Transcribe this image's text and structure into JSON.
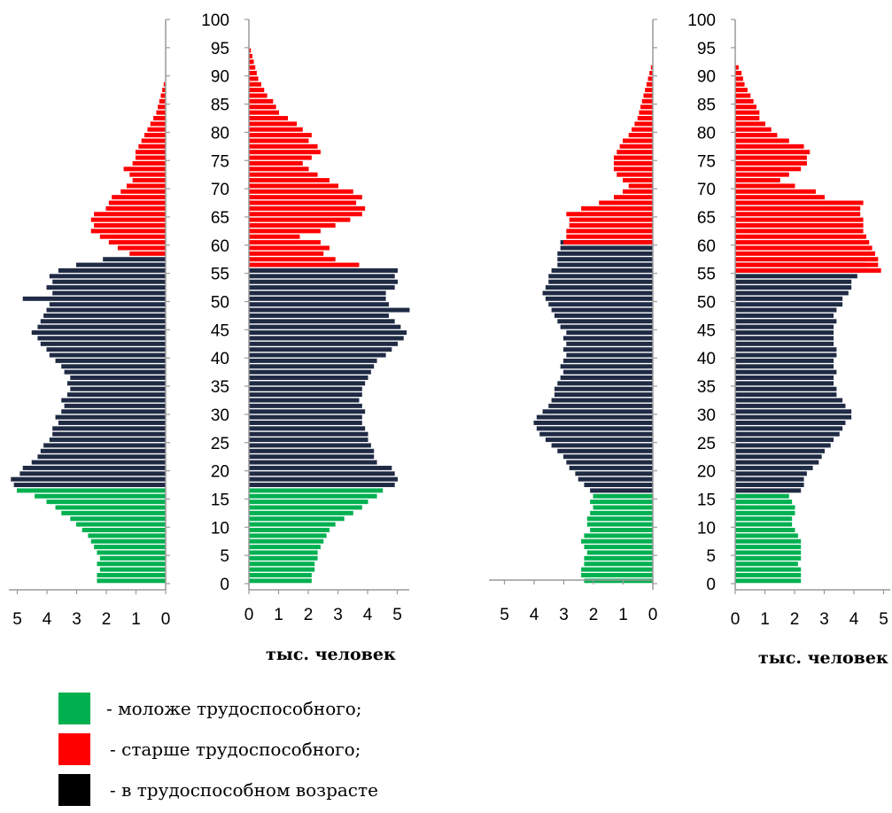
{
  "chart_data": [
    {
      "type": "bar",
      "orientation": "horizontal",
      "direction": "left",
      "panel": "pyramid-1-left",
      "ylim": [
        0,
        100
      ],
      "yticks": [
        "0",
        "5",
        "10",
        "15",
        "20",
        "25",
        "30",
        "35",
        "40",
        "45",
        "50",
        "55",
        "60",
        "65",
        "70",
        "75",
        "80",
        "85",
        "90",
        "95",
        "100"
      ],
      "xlim": [
        5.5,
        0
      ],
      "xticks": [
        "5",
        "4",
        "3",
        "2",
        "1",
        "0"
      ],
      "xlabel": "",
      "age_groups": [
        {
          "group": "younger",
          "from_age": 0,
          "values": [
            2.3,
            2.3,
            2.2,
            2.3,
            2.2,
            2.3,
            2.4,
            2.5,
            2.6,
            2.8,
            3.0,
            3.2,
            3.5,
            3.7,
            4.0,
            4.4,
            5.0
          ]
        },
        {
          "group": "working",
          "from_age": 17,
          "values": [
            5.1,
            5.2,
            4.9,
            4.8,
            4.5,
            4.3,
            4.2,
            4.1,
            3.9,
            3.8,
            3.8,
            3.6,
            3.7,
            3.5,
            3.4,
            3.5,
            3.3,
            3.2,
            3.3,
            3.2,
            3.4,
            3.5,
            3.7,
            3.9,
            4.0,
            4.2,
            4.3,
            4.5,
            4.3,
            4.2,
            4.1,
            4.0,
            3.9,
            4.8,
            3.8,
            4.0,
            3.8,
            3.9,
            3.6,
            3.0,
            2.1
          ]
        },
        {
          "group": "older",
          "from_age": 58,
          "values": [
            1.2,
            1.6,
            1.9,
            2.2,
            2.5,
            2.4,
            2.5,
            2.4,
            2.0,
            1.9,
            1.8,
            1.5,
            1.3,
            1.1,
            1.2,
            1.4,
            1.1,
            1.0,
            1.0,
            0.9,
            0.8,
            0.7,
            0.6,
            0.5,
            0.4,
            0.3,
            0.25,
            0.2,
            0.15,
            0.1,
            0.05
          ]
        }
      ]
    },
    {
      "type": "bar",
      "orientation": "horizontal",
      "direction": "right",
      "panel": "pyramid-1-right",
      "ylim": [
        0,
        100
      ],
      "yticks": [
        "0",
        "5",
        "10",
        "15",
        "20",
        "25",
        "30",
        "35",
        "40",
        "45",
        "50",
        "55",
        "60",
        "65",
        "70",
        "75",
        "80",
        "85",
        "90",
        "95",
        "100"
      ],
      "xlim": [
        0,
        5.5
      ],
      "xticks": [
        "0",
        "1",
        "2",
        "3",
        "4",
        "5"
      ],
      "xlabel": "тыс. человек",
      "age_groups": [
        {
          "group": "younger",
          "from_age": 0,
          "values": [
            2.1,
            2.1,
            2.2,
            2.2,
            2.3,
            2.3,
            2.4,
            2.5,
            2.6,
            2.7,
            2.9,
            3.2,
            3.5,
            3.8,
            4.0,
            4.3,
            4.5
          ]
        },
        {
          "group": "working",
          "from_age": 17,
          "values": [
            4.9,
            5.0,
            4.9,
            4.8,
            4.3,
            4.2,
            4.2,
            4.1,
            4.0,
            4.0,
            3.9,
            3.8,
            3.8,
            3.9,
            3.8,
            3.7,
            3.8,
            3.8,
            3.9,
            4.0,
            4.1,
            4.2,
            4.3,
            4.6,
            4.8,
            5.0,
            5.2,
            5.3,
            5.1,
            4.9,
            4.7,
            5.4,
            4.7,
            4.6,
            4.6,
            4.9,
            5.0,
            4.9,
            5.0
          ]
        },
        {
          "group": "older",
          "from_age": 56,
          "values": [
            3.7,
            2.9,
            2.5,
            2.7,
            2.4,
            1.7,
            2.4,
            2.9,
            3.4,
            3.8,
            3.9,
            3.6,
            3.8,
            3.5,
            3.0,
            2.7,
            2.3,
            2.0,
            1.8,
            2.1,
            2.4,
            2.3,
            2.0,
            2.1,
            1.8,
            1.6,
            1.3,
            1.0,
            0.9,
            0.8,
            0.6,
            0.5,
            0.4,
            0.3,
            0.25,
            0.2,
            0.15,
            0.1,
            0.05
          ]
        }
      ]
    },
    {
      "type": "bar",
      "orientation": "horizontal",
      "direction": "left",
      "panel": "pyramid-2-left",
      "ylim": [
        0,
        100
      ],
      "yticks": [
        "0",
        "5",
        "10",
        "15",
        "20",
        "25",
        "30",
        "35",
        "40",
        "45",
        "50",
        "55",
        "60",
        "65",
        "70",
        "75",
        "80",
        "85",
        "90",
        "95",
        "100"
      ],
      "xlim": [
        5.5,
        0
      ],
      "xticks": [
        "5",
        "4",
        "3",
        "2",
        "1",
        "0"
      ],
      "xlabel": "",
      "age_groups": [
        {
          "group": "younger",
          "from_age": 0,
          "values": [
            2.3,
            2.4,
            2.4,
            2.3,
            2.3,
            2.2,
            2.3,
            2.4,
            2.3,
            2.1,
            2.2,
            2.2,
            2.1,
            2.0,
            2.1,
            2.0
          ]
        },
        {
          "group": "working",
          "from_age": 16,
          "values": [
            2.1,
            2.3,
            2.5,
            2.6,
            2.8,
            2.9,
            3.0,
            3.2,
            3.4,
            3.6,
            3.8,
            3.9,
            4.0,
            3.9,
            3.7,
            3.5,
            3.4,
            3.3,
            3.3,
            3.2,
            3.1,
            3.0,
            3.1,
            3.0,
            2.9,
            3.0,
            2.9,
            3.0,
            2.9,
            3.1,
            3.2,
            3.3,
            3.4,
            3.5,
            3.6,
            3.7,
            3.6,
            3.5,
            3.5,
            3.4,
            3.2,
            3.2,
            3.2,
            3.1,
            3.1
          ]
        },
        {
          "group": "older",
          "from_age": 60,
          "values": [
            3.0,
            2.9,
            2.9,
            2.8,
            2.8,
            2.9,
            2.4,
            1.8,
            1.3,
            1.0,
            0.8,
            1.0,
            1.2,
            1.3,
            1.3,
            1.3,
            1.2,
            1.1,
            1.0,
            0.8,
            0.7,
            0.6,
            0.5,
            0.45,
            0.4,
            0.35,
            0.3,
            0.25,
            0.2,
            0.15,
            0.1,
            0.05
          ]
        }
      ]
    },
    {
      "type": "bar",
      "orientation": "horizontal",
      "direction": "right",
      "panel": "pyramid-2-right",
      "ylim": [
        0,
        100
      ],
      "yticks": [
        "0",
        "5",
        "10",
        "15",
        "20",
        "25",
        "30",
        "35",
        "40",
        "45",
        "50",
        "55",
        "60",
        "65",
        "70",
        "75",
        "80",
        "85",
        "90",
        "95",
        "100"
      ],
      "xlim": [
        0,
        5.5
      ],
      "xticks": [
        "0",
        "1",
        "2",
        "3",
        "4",
        "5"
      ],
      "xlabel": "тыс. человек",
      "age_groups": [
        {
          "group": "younger",
          "from_age": 0,
          "values": [
            2.2,
            2.2,
            2.2,
            2.1,
            2.2,
            2.2,
            2.2,
            2.2,
            2.1,
            2.0,
            1.9,
            1.9,
            2.0,
            2.0,
            1.9,
            1.8
          ]
        },
        {
          "group": "working",
          "from_age": 16,
          "values": [
            2.2,
            2.3,
            2.3,
            2.4,
            2.6,
            2.8,
            2.9,
            3.0,
            3.2,
            3.3,
            3.5,
            3.6,
            3.7,
            3.9,
            3.9,
            3.7,
            3.6,
            3.4,
            3.4,
            3.3,
            3.3,
            3.4,
            3.3,
            3.3,
            3.4,
            3.4,
            3.3,
            3.3,
            3.3,
            3.3,
            3.4,
            3.3,
            3.4,
            3.6,
            3.6,
            3.8,
            3.9,
            3.9,
            4.1,
            4.3,
            4.4
          ]
        },
        {
          "group": "older",
          "from_age": 55,
          "values": [
            4.9,
            4.8,
            4.8,
            4.7,
            4.6,
            4.5,
            4.4,
            4.3,
            4.3,
            4.3,
            4.2,
            4.2,
            4.3,
            3.0,
            2.7,
            2.0,
            1.5,
            1.8,
            2.2,
            2.4,
            2.4,
            2.5,
            2.3,
            1.8,
            1.4,
            1.2,
            1.0,
            0.8,
            0.8,
            0.7,
            0.6,
            0.5,
            0.4,
            0.3,
            0.25,
            0.2,
            0.1
          ]
        }
      ]
    }
  ],
  "colors": {
    "younger": "#00b050",
    "older": "#ff0000",
    "working": "#1f2a44",
    "axis": "#9a9a9a"
  },
  "legend": [
    {
      "key": "younger",
      "label": "- моложе трудоспособного;"
    },
    {
      "key": "older",
      "label": "- старше трудоспособного;"
    },
    {
      "key": "working",
      "label": "- в трудоспособном возрасте"
    }
  ]
}
